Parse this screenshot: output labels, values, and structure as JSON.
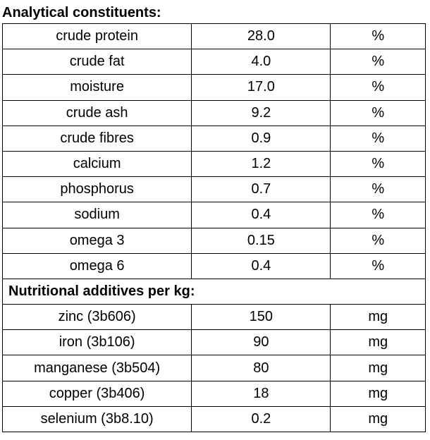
{
  "title": "Analytical constituents:",
  "table": {
    "rows": [
      [
        "crude protein",
        "28.0",
        "%"
      ],
      [
        "crude fat",
        "4.0",
        "%"
      ],
      [
        "moisture",
        "17.0",
        "%"
      ],
      [
        "crude ash",
        "9.2",
        "%"
      ],
      [
        "crude fibres",
        "0.9",
        "%"
      ],
      [
        "calcium",
        "1.2",
        "%"
      ],
      [
        "phosphorus",
        "0.7",
        "%"
      ],
      [
        "sodium",
        "0.4",
        "%"
      ],
      [
        "omega 3",
        "0.15",
        "%"
      ],
      [
        "omega 6",
        "0.4",
        "%"
      ]
    ],
    "subheading": "Nutritional additives per kg:",
    "additive_rows": [
      [
        "zinc (3b606)",
        "150",
        "mg"
      ],
      [
        "iron (3b106)",
        "90",
        "mg"
      ],
      [
        "manganese (3b504)",
        "80",
        "mg"
      ],
      [
        "copper (3b406)",
        "18",
        "mg"
      ],
      [
        "selenium (3b8.10)",
        "0.2",
        "mg"
      ]
    ]
  }
}
